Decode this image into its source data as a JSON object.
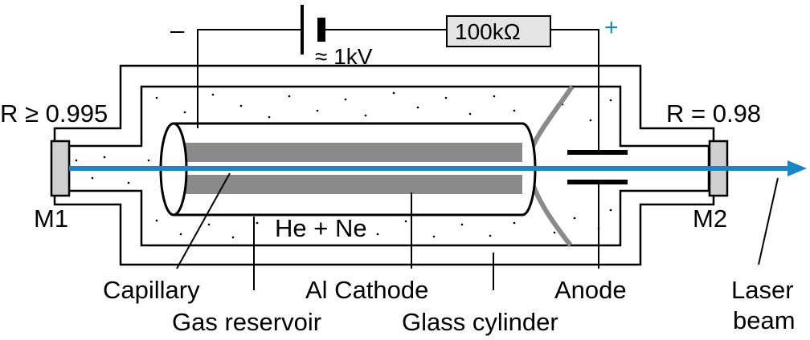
{
  "circuit": {
    "minus_sign": "–",
    "plus_sign": "+",
    "voltage": "≈ 1kV",
    "resistor": "100kΩ"
  },
  "mirrors": {
    "m1_reflectivity": "R ≥ 0.995",
    "m1_label": "M1",
    "m2_reflectivity": "R = 0.98",
    "m2_label": "M2"
  },
  "gas_label": "He + Ne",
  "callouts": {
    "capillary": "Capillary",
    "gas_reservoir": "Gas reservoir",
    "cathode": "Al Cathode",
    "glass_cylinder": "Glass cylinder",
    "anode": "Anode",
    "laser_beam_line1": "Laser",
    "laser_beam_line2": "beam"
  },
  "colors": {
    "beam": "#1a86c4",
    "plus_sign": "#1a86c4",
    "cathode": "#8a8a8a",
    "mirror_fill": "#cfcfcf",
    "wire": "#000000"
  }
}
